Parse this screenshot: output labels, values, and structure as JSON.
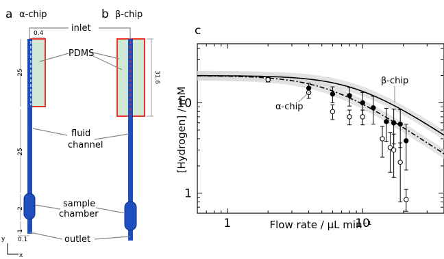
{
  "panels": {
    "a": {
      "letter": "a",
      "title": "α-chip"
    },
    "b": {
      "letter": "b",
      "title": "β-chip"
    },
    "c": {
      "letter": "c"
    }
  },
  "schematic": {
    "inlet": "inlet",
    "pdms": "PDMS",
    "fluid_channel": [
      "fluid",
      "channel"
    ],
    "sample_chamber": [
      "sample",
      "chamber"
    ],
    "outlet": "outlet",
    "dims": {
      "top_width": "0.4",
      "upper_len": "25",
      "lower_len": "25",
      "chamber_len": "2",
      "outlet_len": "1",
      "outlet_width": "0.1",
      "beta_len": "31.6"
    },
    "axes": {
      "y": "y",
      "x": "x"
    }
  },
  "colors": {
    "channel": "#1f4fbf",
    "channel_dark": "#0d2a80",
    "pdms_fill": "#cfe8d4",
    "pdms_border": "#e8332a",
    "band": "#d9d9d9"
  },
  "chart_data": {
    "type": "scatter",
    "xlabel": "Flow rate / μL min⁻¹",
    "ylabel": "[Hydrogen] / mM",
    "xscale": "log",
    "yscale": "log",
    "xlim": [
      0.6,
      40
    ],
    "ylim": [
      0.6,
      45
    ],
    "xticks": [
      1,
      10
    ],
    "yticks": [
      1,
      10
    ],
    "series": [
      {
        "name": "β-chip",
        "marker": "filled",
        "x": [
          2,
          4,
          6,
          8,
          10,
          12,
          15,
          17,
          19,
          21
        ],
        "y": [
          18,
          14.5,
          12.5,
          12,
          10,
          8.8,
          6.2,
          6,
          5.8,
          3.8
        ],
        "err": [
          1,
          2,
          2.5,
          2.8,
          3,
          3,
          2.5,
          2.5,
          2.6,
          2
        ]
      },
      {
        "name": "α-chip",
        "marker": "open",
        "x": [
          2,
          4,
          6,
          8,
          10,
          14,
          16,
          17,
          19,
          21
        ],
        "y": [
          18,
          13,
          8,
          7,
          7,
          4,
          3.2,
          3,
          2.2,
          0.85
        ],
        "err": [
          1,
          1.8,
          1.5,
          1.3,
          1.3,
          1.5,
          1.5,
          1.5,
          1.4,
          0.25
        ]
      }
    ],
    "model_curves": [
      {
        "label": "β-chip",
        "style": "solid",
        "plateau": 20,
        "corner": 9
      },
      {
        "label": "α-chip",
        "style": "dashdot",
        "plateau": 20,
        "corner": 5.5
      }
    ]
  }
}
